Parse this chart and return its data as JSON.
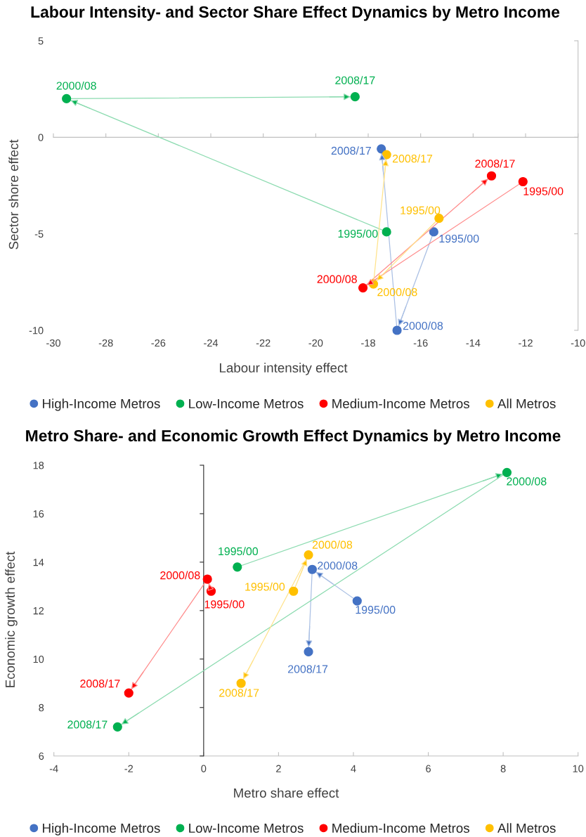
{
  "chart_data": [
    {
      "type": "line",
      "title": "Labour Intensity- and Sector Share Effect Dynamics by Metro Income",
      "xlabel": "Labour intensity effect",
      "ylabel": "Sector shore effect",
      "xlim": [
        -30,
        -10
      ],
      "ylim": [
        -10,
        5
      ],
      "xticks": [
        -30,
        -28,
        -26,
        -24,
        -22,
        -20,
        -18,
        -16,
        -14,
        -12,
        -10
      ],
      "yticks": [
        -10,
        -5,
        0,
        5
      ],
      "marker": "circle",
      "line_style": "solid",
      "legend": "bottom",
      "series": [
        {
          "name": "High-Income Metros",
          "color": "#4472c4",
          "x": [
            -15.5,
            -16.9,
            -17.5
          ],
          "values": [
            -4.9,
            -10.0,
            -0.6
          ]
        },
        {
          "name": "Low-Income Metros",
          "color": "#00b050",
          "x": [
            -17.3,
            -29.5,
            -18.5
          ],
          "values": [
            -4.9,
            2.0,
            2.1
          ]
        },
        {
          "name": "Medium-Income Metros",
          "color": "#ff0000",
          "x": [
            -12.1,
            -18.2,
            -13.3
          ],
          "values": [
            -2.3,
            -7.8,
            -2.0
          ]
        },
        {
          "name": "All Metros",
          "color": "#ffc000",
          "x": [
            -15.3,
            -17.8,
            -17.3
          ],
          "values": [
            -4.2,
            -7.6,
            -0.9
          ]
        }
      ],
      "annotations": [
        {
          "text": "1995/00",
          "x": -15.5,
          "y": -4.9
        },
        {
          "text": "2000/08",
          "x": -16.9,
          "y": -10.0
        },
        {
          "text": "2008/17",
          "x": -17.5,
          "y": -0.6
        },
        {
          "text": "1995/00",
          "x": -17.3,
          "y": -4.9
        },
        {
          "text": "2000/08",
          "x": -29.5,
          "y": 2.0
        },
        {
          "text": "2008/17",
          "x": -18.5,
          "y": 2.1
        },
        {
          "text": "1995/00",
          "x": -12.1,
          "y": -2.3
        },
        {
          "text": "2000/08",
          "x": -18.2,
          "y": -7.8
        },
        {
          "text": "2008/17",
          "x": -13.3,
          "y": -2.0
        },
        {
          "text": "1995/00",
          "x": -15.3,
          "y": -4.2
        },
        {
          "text": "2000/08",
          "x": -17.8,
          "y": -7.6
        },
        {
          "text": "2008/17",
          "x": -17.3,
          "y": -0.9
        }
      ]
    },
    {
      "type": "line",
      "title": "Metro Share- and Economic Growth Effect Dynamics by Metro Income",
      "xlabel": "Metro share effect",
      "ylabel": "Economic growth effect",
      "xlim": [
        -4,
        10
      ],
      "ylim": [
        6,
        18
      ],
      "xticks": [
        -4,
        -2,
        0,
        2,
        4,
        6,
        8,
        10
      ],
      "yticks": [
        6,
        8,
        10,
        12,
        14,
        16,
        18
      ],
      "marker": "circle",
      "line_style": "solid",
      "legend": "bottom",
      "series": [
        {
          "name": "High-Income Metros",
          "color": "#4472c4",
          "x": [
            4.1,
            2.9,
            2.8
          ],
          "values": [
            12.4,
            13.7,
            10.3
          ]
        },
        {
          "name": "Low-Income Metros",
          "color": "#00b050",
          "x": [
            0.9,
            8.1,
            -2.3
          ],
          "values": [
            13.8,
            17.7,
            7.2
          ]
        },
        {
          "name": "Medium-Income Metros",
          "color": "#ff0000",
          "x": [
            0.2,
            0.1,
            -2.0
          ],
          "values": [
            12.8,
            13.3,
            8.6
          ]
        },
        {
          "name": "All Metros",
          "color": "#ffc000",
          "x": [
            2.4,
            2.8,
            1.0
          ],
          "values": [
            12.8,
            14.3,
            9.0
          ]
        }
      ],
      "annotations": [
        {
          "text": "1995/00",
          "x": 4.1,
          "y": 12.4
        },
        {
          "text": "2000/08",
          "x": 2.9,
          "y": 13.7
        },
        {
          "text": "2008/17",
          "x": 2.8,
          "y": 10.3
        },
        {
          "text": "1995/00",
          "x": 0.9,
          "y": 13.8
        },
        {
          "text": "2000/08",
          "x": 8.1,
          "y": 17.7
        },
        {
          "text": "2008/17",
          "x": -2.3,
          "y": 7.2
        },
        {
          "text": "1995/00",
          "x": 0.2,
          "y": 12.8
        },
        {
          "text": "2000/08",
          "x": 0.1,
          "y": 13.3
        },
        {
          "text": "2008/17",
          "x": -2.0,
          "y": 8.6
        },
        {
          "text": "1995/00",
          "x": 2.4,
          "y": 12.8
        },
        {
          "text": "2000/08",
          "x": 2.8,
          "y": 14.3
        },
        {
          "text": "2008/17",
          "x": 1.0,
          "y": 9.0
        }
      ]
    }
  ]
}
